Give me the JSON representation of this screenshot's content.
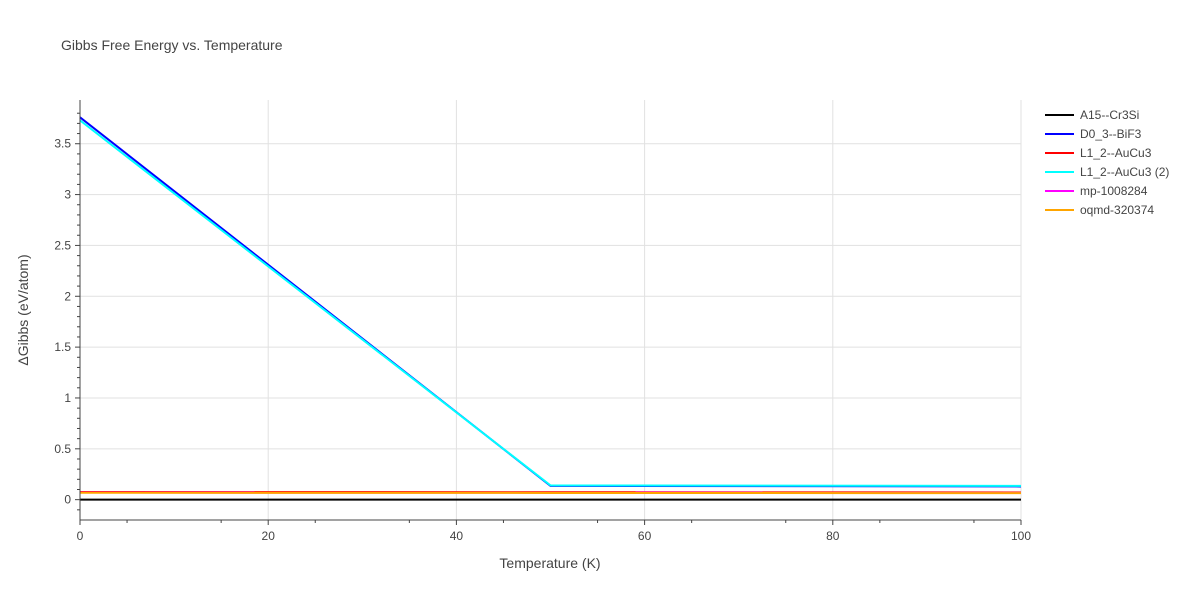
{
  "chart_data": {
    "type": "line",
    "title": "Gibbs Free Energy vs. Temperature",
    "xlabel": "Temperature (K)",
    "ylabel": "ΔGibbs (eV/atom)",
    "xlim": [
      0,
      100
    ],
    "ylim": [
      -0.2,
      3.93
    ],
    "xticks": [
      0,
      20,
      40,
      60,
      80,
      100
    ],
    "xtick_labels": [
      "0",
      "20",
      "40",
      "60",
      "80",
      "100"
    ],
    "yticks": [
      0,
      0.5,
      1,
      1.5,
      2,
      2.5,
      3,
      3.5
    ],
    "ytick_labels": [
      "0",
      "0.5",
      "1",
      "1.5",
      "2",
      "2.5",
      "3",
      "3.5"
    ],
    "grid": true,
    "legend_position": "top-right",
    "series": [
      {
        "name": "A15--Cr3Si",
        "color": "#000000",
        "x": [
          0,
          100
        ],
        "y": [
          0,
          0
        ]
      },
      {
        "name": "D0_3--BiF3",
        "color": "#0000ff",
        "x": [
          0,
          50,
          100
        ],
        "y": [
          3.76,
          0.135,
          0.13
        ]
      },
      {
        "name": "L1_2--AuCu3",
        "color": "#ff0000",
        "x": [
          0,
          50,
          100
        ],
        "y": [
          0.075,
          0.073,
          0.071
        ]
      },
      {
        "name": "L1_2--AuCu3 (2)",
        "color": "#00ffff",
        "x": [
          0,
          50,
          100
        ],
        "y": [
          3.73,
          0.14,
          0.135
        ]
      },
      {
        "name": "mp-1008284",
        "color": "#ff00ff",
        "x": [
          0,
          100
        ],
        "y": [
          0.07,
          0.068
        ]
      },
      {
        "name": "oqmd-320374",
        "color": "#ffa500",
        "x": [
          0,
          50,
          100
        ],
        "y": [
          0.068,
          0.066,
          0.064
        ]
      }
    ]
  }
}
